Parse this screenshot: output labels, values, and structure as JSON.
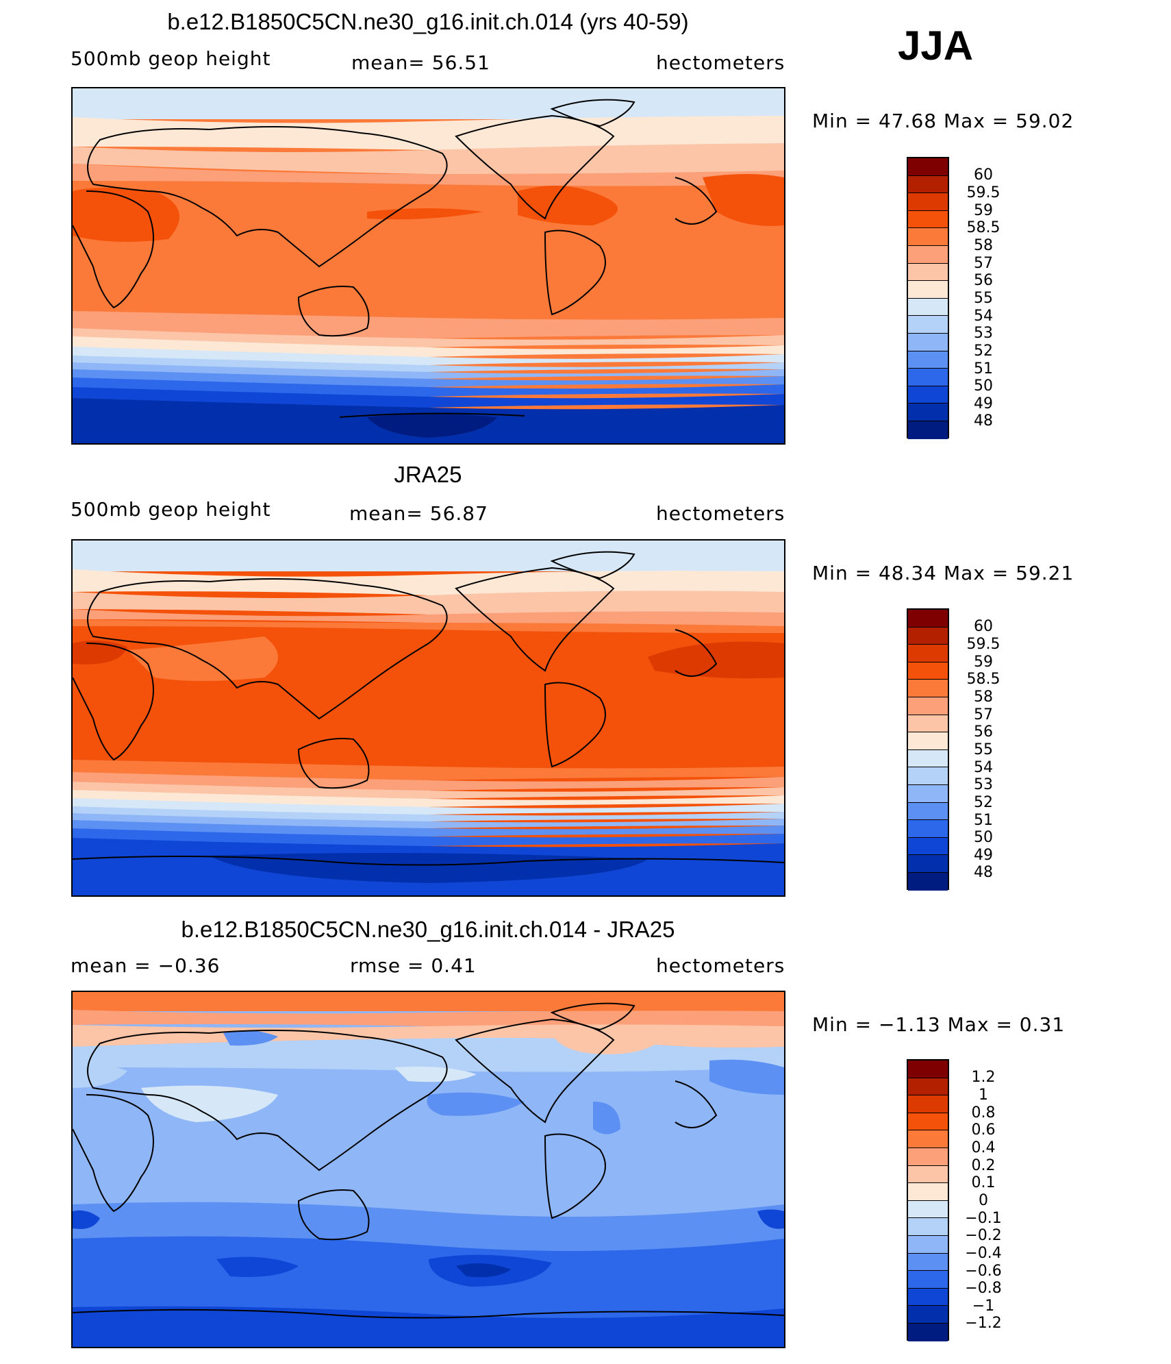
{
  "season": "JJA",
  "panels": [
    {
      "title": "b.e12.B1850C5CN.ne30_g16.init.ch.014 (yrs 40-59)",
      "left_label": "500mb geop height",
      "center_label": "mean=  56.51",
      "right_label": "hectometers",
      "min_max": "Min =   47.68 Max =   59.02",
      "colorbar": {
        "labels": [
          "60",
          "59.5",
          "59",
          "58.5",
          "58",
          "57",
          "56",
          "55",
          "54",
          "53",
          "52",
          "51",
          "50",
          "49",
          "48"
        ],
        "colors": [
          "#7f0000",
          "#b22000",
          "#dc3a00",
          "#f4520a",
          "#fb7a3a",
          "#fca07a",
          "#fcc5a8",
          "#fde8d6",
          "#d6e8f8",
          "#b4d2f7",
          "#8fb6f6",
          "#5c90f2",
          "#2d68ea",
          "#0f46d5",
          "#0230ac",
          "#001c80"
        ]
      }
    },
    {
      "title": "JRA25",
      "left_label": "500mb geop height",
      "center_label": "mean=  56.87",
      "right_label": "hectometers",
      "min_max": "Min =   48.34 Max =   59.21",
      "colorbar": {
        "labels": [
          "60",
          "59.5",
          "59",
          "58.5",
          "58",
          "57",
          "56",
          "55",
          "54",
          "53",
          "52",
          "51",
          "50",
          "49",
          "48"
        ],
        "colors": [
          "#7f0000",
          "#b22000",
          "#dc3a00",
          "#f4520a",
          "#fb7a3a",
          "#fca07a",
          "#fcc5a8",
          "#fde8d6",
          "#d6e8f8",
          "#b4d2f7",
          "#8fb6f6",
          "#5c90f2",
          "#2d68ea",
          "#0f46d5",
          "#0230ac",
          "#001c80"
        ]
      }
    },
    {
      "title": "b.e12.B1850C5CN.ne30_g16.init.ch.014 - JRA25",
      "left_label": "mean =   −0.36",
      "center_label": "rmse =    0.41",
      "right_label": "hectometers",
      "min_max": "Min =   −1.13 Max =    0.31",
      "colorbar": {
        "labels": [
          "1.2",
          "1",
          "0.8",
          "0.6",
          "0.4",
          "0.2",
          "0.1",
          "0",
          "−0.1",
          "−0.2",
          "−0.4",
          "−0.6",
          "−0.8",
          "−1",
          "−1.2"
        ],
        "colors": [
          "#7f0000",
          "#b22000",
          "#dc3a00",
          "#f4520a",
          "#fb7a3a",
          "#fca07a",
          "#fcc5a8",
          "#fde8d6",
          "#d6e8f8",
          "#b4d2f7",
          "#8fb6f6",
          "#5c90f2",
          "#2d68ea",
          "#0f46d5",
          "#0230ac",
          "#001c80"
        ]
      }
    }
  ]
}
